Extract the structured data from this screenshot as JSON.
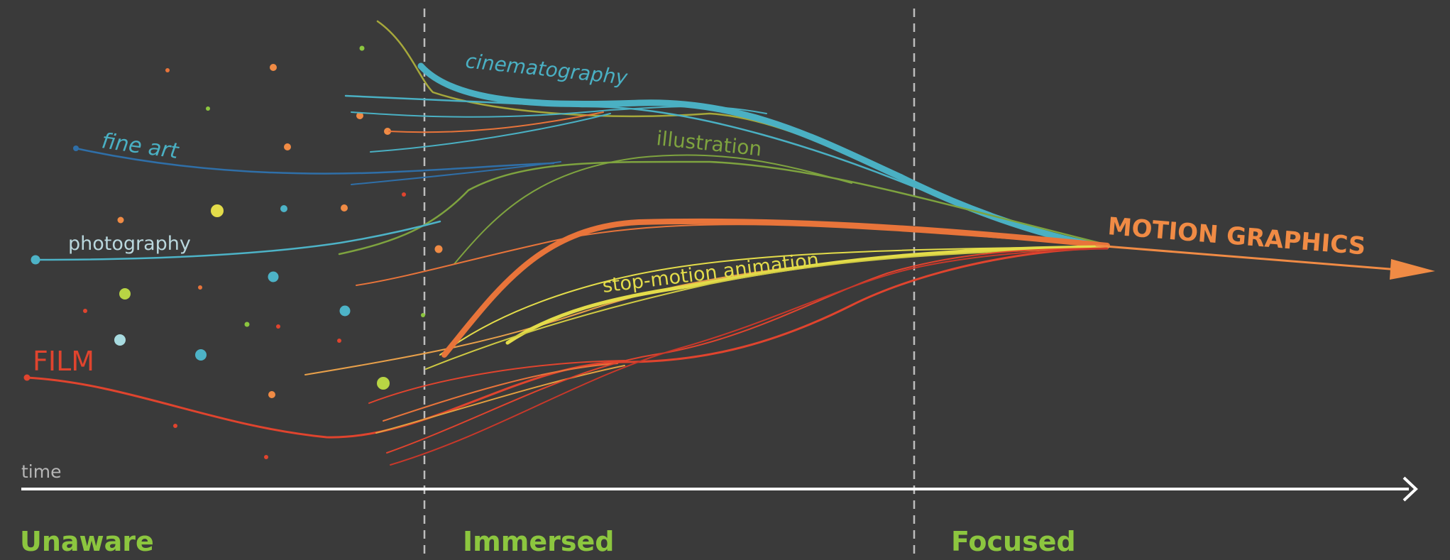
{
  "labels": {
    "film": "FILM",
    "fine_art": "fine art",
    "photography": "photography",
    "cinematography": "cinematography",
    "illustration": "illustration",
    "stop_motion": "stop-motion animation",
    "motion_graphics": "MOTION GRAPHICS",
    "time": "time"
  },
  "phases": [
    "Unaware",
    "Immersed",
    "Focused"
  ],
  "colors": {
    "background": "#3a3a3a",
    "film": "#e0442e",
    "fine_art": "#2f6fa8",
    "photography": "#4db3c7",
    "cinematography": "#4ab0c3",
    "illustration": "#7ea33f",
    "stop_motion": "#e3dc4a",
    "motion_graphics": "#f08b45",
    "phase_text": "#8cc63f",
    "timeline": "#ffffff"
  }
}
